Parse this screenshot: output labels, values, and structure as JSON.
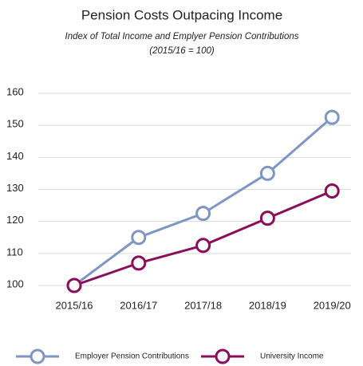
{
  "chart_data": {
    "type": "line",
    "title": "Pension Costs Outpacing Income",
    "subtitle": [
      "Index of Total Income and Emplyer Pension Contributions",
      "(2015/16 = 100)"
    ],
    "categories": [
      "2015/16",
      "2016/17",
      "2017/18",
      "2018/19",
      "2019/20"
    ],
    "series": [
      {
        "name": "Employer Pension Contributions",
        "color": "#7f96c4",
        "values": [
          100,
          115,
          122.5,
          135,
          152.5
        ]
      },
      {
        "name": "University Income",
        "color": "#8b0e5a",
        "values": [
          100,
          107,
          112.5,
          121,
          129.5
        ]
      }
    ],
    "ylim": [
      100,
      160
    ],
    "yticks": [
      100,
      110,
      120,
      130,
      140,
      150,
      160
    ],
    "grid": true,
    "legend": "bottom"
  }
}
